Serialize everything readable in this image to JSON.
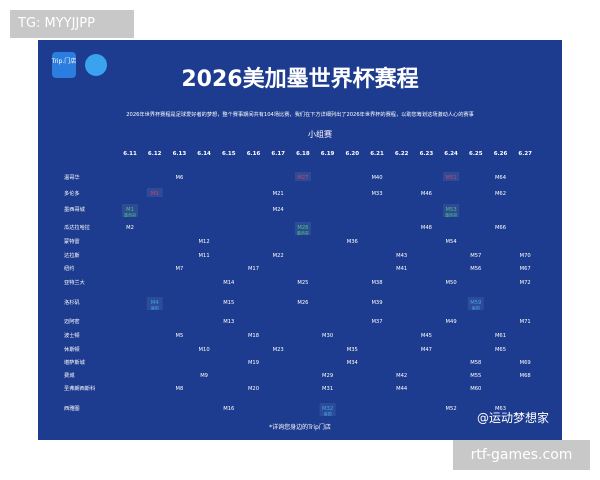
{
  "tag": "TG: MYYJJPP",
  "site": "rtf-games.com",
  "watermark": "@运动梦想家",
  "poster": {
    "logo": "Trip.门店",
    "title": "2026美加墨世界杯赛程",
    "description": "2026年世界杯赛程是足球爱好者的梦想，整个赛事期间共有104场比赛，我们在下方详细列出了2026年世界杯的赛程，以助您筹划这场激动人心的赛事",
    "stage": "小组赛",
    "footer": "*详询您身边的Trip门店",
    "highlight_colors": {
      "red": "#d8405a",
      "green": "#4cc46e",
      "blue": "#3fa6e8"
    },
    "dates": [
      "6.11",
      "6.12",
      "6.13",
      "6.14",
      "6.15",
      "6.16",
      "6.17",
      "6.18",
      "6.19",
      "6.20",
      "6.21",
      "6.22",
      "6.23",
      "6.24",
      "6.25",
      "6.26",
      "6.27"
    ],
    "cities": [
      {
        "name": "温哥华",
        "matches": [
          {
            "day": "6.13",
            "label": "M6"
          },
          {
            "day": "6.18",
            "label": "M27",
            "highlight": "red"
          },
          {
            "day": "6.21",
            "label": "M40"
          },
          {
            "day": "6.24",
            "label": "M51",
            "highlight": "red"
          },
          {
            "day": "6.26",
            "label": "M64"
          }
        ]
      },
      {
        "name": "多伦多",
        "matches": [
          {
            "day": "6.12",
            "label": "M3",
            "highlight": "red"
          },
          {
            "day": "6.17",
            "label": "M21"
          },
          {
            "day": "6.21",
            "label": "M33"
          },
          {
            "day": "6.23",
            "label": "M46"
          },
          {
            "day": "6.26",
            "label": "M62"
          }
        ]
      },
      {
        "name": "墨西哥城",
        "matches": [
          {
            "day": "6.11",
            "label": "M1",
            "highlight": "green",
            "note": "墨西哥"
          },
          {
            "day": "6.17",
            "label": "M24"
          },
          {
            "day": "6.24",
            "label": "M53",
            "highlight": "green",
            "note": "墨西哥"
          }
        ]
      },
      {
        "name": "瓜达拉哈拉",
        "matches": [
          {
            "day": "6.11",
            "label": "M2"
          },
          {
            "day": "6.18",
            "label": "M28",
            "highlight": "green",
            "note": "墨西哥"
          },
          {
            "day": "6.23",
            "label": "M48"
          },
          {
            "day": "6.26",
            "label": "M66"
          }
        ]
      },
      {
        "name": "蒙特雷",
        "matches": [
          {
            "day": "6.14",
            "label": "M12"
          },
          {
            "day": "6.20",
            "label": "M36"
          },
          {
            "day": "6.24",
            "label": "M54"
          }
        ]
      },
      {
        "name": "达拉斯",
        "matches": [
          {
            "day": "6.14",
            "label": "M11"
          },
          {
            "day": "6.17",
            "label": "M22"
          },
          {
            "day": "6.22",
            "label": "M43"
          },
          {
            "day": "6.25",
            "label": "M57"
          },
          {
            "day": "6.27",
            "label": "M70"
          }
        ]
      },
      {
        "name": "纽约",
        "matches": [
          {
            "day": "6.13",
            "label": "M7"
          },
          {
            "day": "6.16",
            "label": "M17"
          },
          {
            "day": "6.22",
            "label": "M41"
          },
          {
            "day": "6.25",
            "label": "M56"
          },
          {
            "day": "6.27",
            "label": "M67"
          }
        ]
      },
      {
        "name": "亚特兰大",
        "matches": [
          {
            "day": "6.15",
            "label": "M14"
          },
          {
            "day": "6.18",
            "label": "M25"
          },
          {
            "day": "6.21",
            "label": "M38"
          },
          {
            "day": "6.24",
            "label": "M50"
          },
          {
            "day": "6.27",
            "label": "M72"
          }
        ]
      },
      {
        "name": "洛杉矶",
        "matches": [
          {
            "day": "6.12",
            "label": "M4",
            "highlight": "blue",
            "note": "美国"
          },
          {
            "day": "6.15",
            "label": "M15"
          },
          {
            "day": "6.18",
            "label": "M26"
          },
          {
            "day": "6.21",
            "label": "M39"
          },
          {
            "day": "6.25",
            "label": "M59",
            "highlight": "blue",
            "note": "美国"
          }
        ]
      },
      {
        "name": "迈阿密",
        "matches": [
          {
            "day": "6.15",
            "label": "M13"
          },
          {
            "day": "6.21",
            "label": "M37"
          },
          {
            "day": "6.24",
            "label": "M49"
          },
          {
            "day": "6.27",
            "label": "M71"
          }
        ]
      },
      {
        "name": "波士顿",
        "matches": [
          {
            "day": "6.13",
            "label": "M5"
          },
          {
            "day": "6.16",
            "label": "M18"
          },
          {
            "day": "6.19",
            "label": "M30"
          },
          {
            "day": "6.23",
            "label": "M45"
          },
          {
            "day": "6.26",
            "label": "M61"
          }
        ]
      },
      {
        "name": "休斯顿",
        "matches": [
          {
            "day": "6.14",
            "label": "M10"
          },
          {
            "day": "6.17",
            "label": "M23"
          },
          {
            "day": "6.20",
            "label": "M35"
          },
          {
            "day": "6.23",
            "label": "M47"
          },
          {
            "day": "6.26",
            "label": "M65"
          }
        ]
      },
      {
        "name": "堪萨斯城",
        "matches": [
          {
            "day": "6.16",
            "label": "M19"
          },
          {
            "day": "6.20",
            "label": "M34"
          },
          {
            "day": "6.25",
            "label": "M58"
          },
          {
            "day": "6.27",
            "label": "M69"
          }
        ]
      },
      {
        "name": "费城",
        "matches": [
          {
            "day": "6.14",
            "label": "M9"
          },
          {
            "day": "6.19",
            "label": "M29"
          },
          {
            "day": "6.22",
            "label": "M42"
          },
          {
            "day": "6.25",
            "label": "M55"
          },
          {
            "day": "6.27",
            "label": "M68"
          }
        ]
      },
      {
        "name": "圣弗朗西斯科",
        "matches": [
          {
            "day": "6.13",
            "label": "M8"
          },
          {
            "day": "6.16",
            "label": "M20"
          },
          {
            "day": "6.19",
            "label": "M31"
          },
          {
            "day": "6.22",
            "label": "M44"
          },
          {
            "day": "6.25",
            "label": "M60"
          }
        ]
      },
      {
        "name": "西雅图",
        "matches": [
          {
            "day": "6.15",
            "label": "M16"
          },
          {
            "day": "6.19",
            "label": "M32",
            "highlight": "blue",
            "note": "美国"
          },
          {
            "day": "6.24",
            "label": "M52"
          },
          {
            "day": "6.26",
            "label": "M63"
          }
        ]
      }
    ]
  }
}
